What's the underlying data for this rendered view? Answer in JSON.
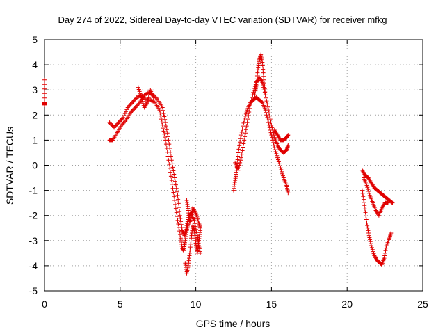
{
  "chart_data": {
    "type": "scatter",
    "title": "Day 274 of 2022, Sidereal Day-to-day VTEC variation (SDTVAR) for receiver mfkg",
    "xlabel": "GPS time / hours",
    "ylabel": "SDTVAR / TECUs",
    "xlim": [
      0,
      25
    ],
    "ylim": [
      -5,
      5
    ],
    "xticks": [
      "0",
      "5",
      "10",
      "15",
      "20",
      "25"
    ],
    "yticks": [
      "5",
      "4",
      "3",
      "2",
      "1",
      "0",
      "-1",
      "-2",
      "-3",
      "-4",
      "-5"
    ],
    "grid": true,
    "marker": "plus",
    "series": [
      {
        "color": "#e00000",
        "tracks": [
          [
            [
              0.0,
              3.4
            ],
            [
              0.0,
              2.5
            ],
            [
              0.0,
              2.4
            ]
          ],
          [
            [
              4.3,
              1.7
            ],
            [
              4.6,
              1.5
            ],
            [
              4.9,
              1.7
            ],
            [
              5.2,
              1.9
            ],
            [
              5.5,
              2.3
            ],
            [
              5.8,
              2.5
            ],
            [
              6.1,
              2.7
            ],
            [
              6.4,
              2.8
            ],
            [
              6.7,
              2.6
            ],
            [
              7.0,
              2.6
            ],
            [
              7.3,
              2.5
            ],
            [
              7.6,
              2.2
            ],
            [
              7.8,
              1.6
            ],
            [
              8.0,
              1.0
            ],
            [
              8.2,
              0.2
            ],
            [
              8.4,
              -0.6
            ],
            [
              8.6,
              -1.4
            ],
            [
              8.8,
              -2.2
            ],
            [
              9.0,
              -2.9
            ],
            [
              9.1,
              -3.3
            ],
            [
              9.2,
              -3.4
            ],
            [
              9.3,
              -3.0
            ],
            [
              9.4,
              -2.6
            ],
            [
              9.5,
              -2.3
            ]
          ],
          [
            [
              4.3,
              1.0
            ],
            [
              4.5,
              1.0
            ],
            [
              4.8,
              1.3
            ],
            [
              5.1,
              1.6
            ],
            [
              5.4,
              1.8
            ],
            [
              5.7,
              2.1
            ],
            [
              6.0,
              2.3
            ],
            [
              6.3,
              2.5
            ],
            [
              6.6,
              2.8
            ],
            [
              6.9,
              2.9
            ],
            [
              7.2,
              2.8
            ],
            [
              7.5,
              2.6
            ],
            [
              7.8,
              2.3
            ],
            [
              8.0,
              1.7
            ],
            [
              8.2,
              1.0
            ],
            [
              8.4,
              0.2
            ],
            [
              8.6,
              -0.5
            ],
            [
              8.8,
              -1.2
            ],
            [
              8.95,
              -2.0
            ],
            [
              9.1,
              -2.6
            ],
            [
              9.25,
              -2.8
            ],
            [
              9.4,
              -2.4
            ],
            [
              9.55,
              -2.0
            ],
            [
              9.7,
              -1.9
            ],
            [
              9.9,
              -2.2
            ],
            [
              10.1,
              -2.8
            ],
            [
              10.2,
              -3.2
            ],
            [
              10.3,
              -3.5
            ]
          ],
          [
            [
              6.2,
              3.1
            ],
            [
              6.4,
              2.7
            ],
            [
              6.6,
              2.3
            ],
            [
              6.8,
              2.5
            ],
            [
              7.0,
              3.0
            ],
            [
              7.2,
              2.7
            ]
          ],
          [
            [
              9.3,
              -3.9
            ],
            [
              9.4,
              -4.3
            ],
            [
              9.5,
              -4.0
            ],
            [
              9.6,
              -3.5
            ],
            [
              9.7,
              -2.9
            ],
            [
              9.8,
              -2.4
            ],
            [
              9.9,
              -2.6
            ],
            [
              10.0,
              -3.1
            ],
            [
              10.1,
              -3.5
            ],
            [
              10.2,
              -3.0
            ],
            [
              10.3,
              -2.6
            ]
          ],
          [
            [
              9.4,
              -1.4
            ],
            [
              9.5,
              -1.8
            ],
            [
              9.6,
              -2.3
            ],
            [
              9.7,
              -2.0
            ],
            [
              9.8,
              -1.7
            ],
            [
              10.0,
              -1.9
            ],
            [
              10.2,
              -2.3
            ],
            [
              10.3,
              -2.5
            ]
          ],
          [
            [
              12.5,
              -1.0
            ],
            [
              12.6,
              -0.6
            ],
            [
              12.7,
              -0.2
            ],
            [
              12.8,
              0.5
            ],
            [
              13.0,
              1.2
            ],
            [
              13.2,
              1.8
            ],
            [
              13.4,
              2.2
            ],
            [
              13.6,
              2.5
            ],
            [
              13.8,
              2.6
            ],
            [
              14.0,
              2.7
            ],
            [
              14.2,
              2.6
            ],
            [
              14.4,
              2.5
            ],
            [
              14.6,
              2.2
            ],
            [
              14.8,
              1.7
            ],
            [
              15.0,
              1.2
            ],
            [
              15.2,
              0.7
            ],
            [
              15.4,
              0.3
            ],
            [
              15.6,
              -0.1
            ],
            [
              15.8,
              -0.5
            ],
            [
              16.0,
              -0.8
            ],
            [
              16.1,
              -1.1
            ]
          ],
          [
            [
              12.6,
              0.1
            ],
            [
              12.8,
              -0.2
            ],
            [
              13.0,
              0.3
            ],
            [
              13.2,
              1.0
            ],
            [
              13.4,
              1.7
            ],
            [
              13.6,
              2.4
            ],
            [
              13.8,
              2.9
            ],
            [
              14.0,
              3.3
            ],
            [
              14.2,
              3.5
            ],
            [
              14.4,
              3.3
            ],
            [
              14.6,
              2.8
            ],
            [
              14.8,
              2.2
            ],
            [
              15.0,
              1.6
            ],
            [
              15.2,
              1.1
            ],
            [
              15.4,
              0.8
            ],
            [
              15.6,
              0.6
            ],
            [
              15.8,
              0.5
            ],
            [
              16.0,
              0.6
            ],
            [
              16.1,
              0.8
            ]
          ],
          [
            [
              13.9,
              2.8
            ],
            [
              14.0,
              3.2
            ],
            [
              14.1,
              3.8
            ],
            [
              14.2,
              4.2
            ],
            [
              14.3,
              4.4
            ],
            [
              14.4,
              4.1
            ],
            [
              14.5,
              3.4
            ],
            [
              14.6,
              2.8
            ]
          ],
          [
            [
              15.2,
              1.4
            ],
            [
              15.4,
              1.2
            ],
            [
              15.6,
              1.0
            ],
            [
              15.8,
              1.0
            ],
            [
              16.0,
              1.1
            ],
            [
              16.1,
              1.2
            ]
          ],
          [
            [
              21.0,
              -0.2
            ],
            [
              21.2,
              -0.4
            ],
            [
              21.4,
              -0.5
            ],
            [
              21.6,
              -0.7
            ],
            [
              21.8,
              -0.9
            ],
            [
              22.0,
              -1.0
            ],
            [
              22.2,
              -1.1
            ],
            [
              22.4,
              -1.2
            ],
            [
              22.6,
              -1.3
            ],
            [
              22.8,
              -1.4
            ],
            [
              23.0,
              -1.5
            ]
          ],
          [
            [
              21.0,
              -1.0
            ],
            [
              21.15,
              -1.6
            ],
            [
              21.3,
              -2.3
            ],
            [
              21.45,
              -2.8
            ],
            [
              21.6,
              -3.2
            ],
            [
              21.8,
              -3.6
            ],
            [
              22.0,
              -3.8
            ],
            [
              22.2,
              -3.9
            ],
            [
              22.3,
              -3.95
            ],
            [
              22.45,
              -3.7
            ],
            [
              22.6,
              -3.2
            ],
            [
              22.8,
              -2.9
            ],
            [
              22.9,
              -2.7
            ]
          ],
          [
            [
              21.1,
              -0.5
            ],
            [
              21.3,
              -0.8
            ],
            [
              21.5,
              -1.2
            ],
            [
              21.7,
              -1.5
            ],
            [
              21.9,
              -1.8
            ],
            [
              22.1,
              -2.0
            ],
            [
              22.3,
              -1.7
            ],
            [
              22.5,
              -1.5
            ],
            [
              22.7,
              -1.5
            ]
          ]
        ]
      }
    ]
  }
}
